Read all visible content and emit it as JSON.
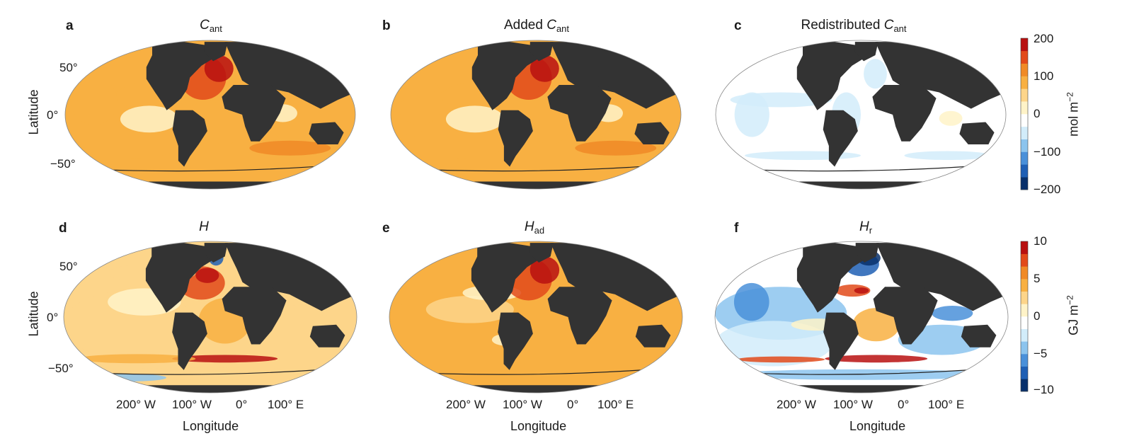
{
  "chart_data": [
    {
      "panel": "a",
      "type": "heatmap",
      "title_main": "C",
      "title_sub": "ant",
      "title_prefix": "",
      "ylabel": "Latitude",
      "yticks": [
        "50°",
        "0°",
        "−50°"
      ],
      "xlabel": "",
      "xticks": [],
      "colorbar": "top",
      "field": "cant"
    },
    {
      "panel": "b",
      "type": "heatmap",
      "title_main": "C",
      "title_sub": "ant",
      "title_prefix": "Added ",
      "ylabel": "",
      "yticks": [],
      "xlabel": "",
      "xticks": [],
      "colorbar": "top",
      "field": "cant"
    },
    {
      "panel": "c",
      "type": "heatmap",
      "title_main": "C",
      "title_sub": "ant",
      "title_prefix": "Redistributed ",
      "ylabel": "",
      "yticks": [],
      "xlabel": "",
      "xticks": [],
      "colorbar": "top",
      "field": "cant_redis"
    },
    {
      "panel": "d",
      "type": "heatmap",
      "title_main": "H",
      "title_sub": "",
      "title_prefix": "",
      "ylabel": "Latitude",
      "yticks": [
        "50°",
        "0°",
        "−50°"
      ],
      "xlabel": "Longitude",
      "xticks": [
        "200° W",
        "100° W",
        "0°",
        "100° E"
      ],
      "colorbar": "bottom",
      "field": "heat"
    },
    {
      "panel": "e",
      "type": "heatmap",
      "title_main": "H",
      "title_sub": "ad",
      "title_prefix": "",
      "ylabel": "",
      "yticks": [],
      "xlabel": "Longitude",
      "xticks": [
        "200° W",
        "100° W",
        "0°",
        "100° E"
      ],
      "colorbar": "bottom",
      "field": "heat_ad"
    },
    {
      "panel": "f",
      "type": "heatmap",
      "title_main": "H",
      "title_sub": "r",
      "title_prefix": "",
      "ylabel": "",
      "yticks": [],
      "xlabel": "Longitude",
      "xticks": [
        "200° W",
        "100° W",
        "0°",
        "100° E"
      ],
      "colorbar": "bottom",
      "field": "heat_r"
    }
  ],
  "colorbars": {
    "top": {
      "label": "mol m",
      "label_exp": "−2",
      "min": -200,
      "max": 200,
      "ticks": [
        "200",
        "100",
        "0",
        "−100",
        "−200"
      ]
    },
    "bottom": {
      "label": "GJ m",
      "label_exp": "−2",
      "min": -10,
      "max": 10,
      "ticks": [
        "10",
        "5",
        "0",
        "−5",
        "−10"
      ]
    }
  },
  "colors": {
    "land": "#333333",
    "scale": [
      "#08306b",
      "#1f5fb4",
      "#4a90d9",
      "#8cc4ee",
      "#d2ecfa",
      "#ffffff",
      "#fff3c8",
      "#fdd58a",
      "#f8b042",
      "#f08a26",
      "#e24a1a",
      "#b81010"
    ]
  }
}
